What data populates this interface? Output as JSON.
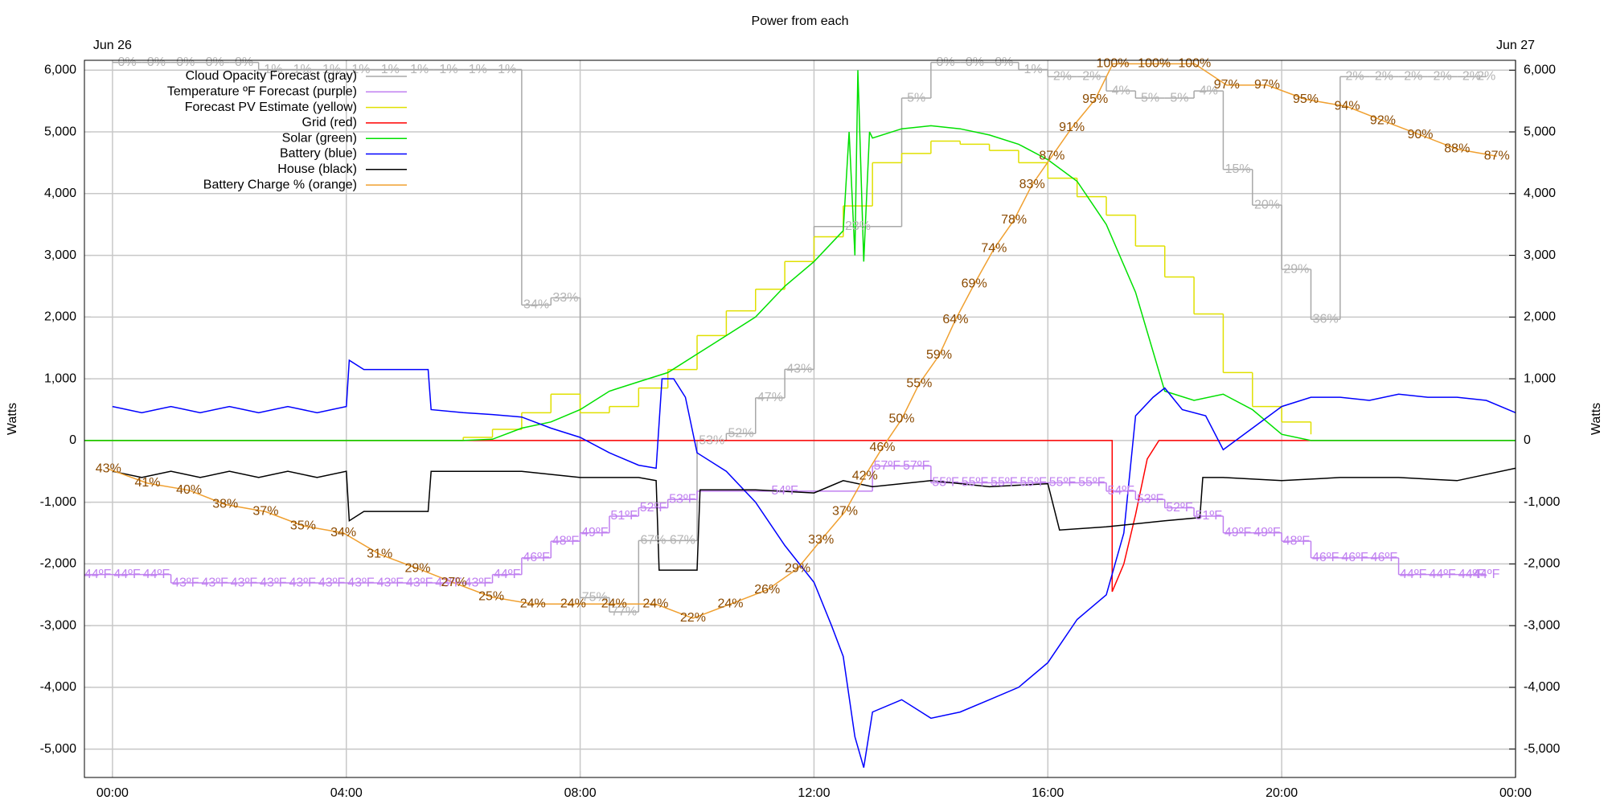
{
  "chart_data": {
    "type": "line",
    "title": "Power from each",
    "ylabel": "Watts",
    "y2label": "Watts",
    "date_labels": [
      {
        "value": 0,
        "label": "Jun 26"
      },
      {
        "value": 24,
        "label": "Jun 27"
      }
    ],
    "xlim": [
      -0.48,
      24
    ],
    "xticks": [
      {
        "value": 0,
        "label": "00:00"
      },
      {
        "value": 4,
        "label": "04:00"
      },
      {
        "value": 8,
        "label": "08:00"
      },
      {
        "value": 12,
        "label": "12:00"
      },
      {
        "value": 16,
        "label": "16:00"
      },
      {
        "value": 20,
        "label": "20:00"
      },
      {
        "value": 24,
        "label": "00:00"
      }
    ],
    "ylim": [
      -5460,
      6160
    ],
    "yticks": [
      {
        "value": 6000,
        "label": "6,000"
      },
      {
        "value": 5000,
        "label": "5,000"
      },
      {
        "value": 4000,
        "label": "4,000"
      },
      {
        "value": 3000,
        "label": "3,000"
      },
      {
        "value": 2000,
        "label": "2,000"
      },
      {
        "value": 1000,
        "label": "1,000"
      },
      0,
      {
        "value": -1000,
        "label": "-1,000"
      },
      {
        "value": -2000,
        "label": "-2,000"
      },
      {
        "value": -3000,
        "label": "-3,000"
      },
      {
        "value": -4000,
        "label": "-4,000"
      },
      {
        "value": -5000,
        "label": "-5,000"
      }
    ],
    "y2lim": [
      -5460,
      6160
    ],
    "y2ticks": [
      {
        "value": 6000,
        "label": "6,000"
      },
      {
        "value": 5000,
        "label": "5,000"
      },
      {
        "value": 4000,
        "label": "4,000"
      },
      {
        "value": 3000,
        "label": "3,000"
      },
      {
        "value": 2000,
        "label": "2,000"
      },
      {
        "value": 1000,
        "label": "1,000"
      },
      0,
      {
        "value": -1000,
        "label": "-1,000"
      },
      {
        "value": -2000,
        "label": "-2,000"
      },
      {
        "value": -3000,
        "label": "-3,000"
      },
      {
        "value": -4000,
        "label": "-4,000"
      },
      {
        "value": -5000,
        "label": "-5,000"
      }
    ],
    "y3lim": [
      -0.4,
      100.5
    ],
    "y4lim": [
      19.7,
      105.6
    ],
    "y5lim": [
      100.2,
      -0.3
    ],
    "grid": true,
    "legend": "upper left",
    "series": [
      {
        "name": "Cloud Opacity Forecast (gray)",
        "color": "#a8a8a8",
        "label_color": "#b4b4b4",
        "axis": "y5",
        "step": true,
        "x": [
          0,
          0.5,
          1,
          1.5,
          2,
          2.5,
          3,
          3.5,
          4,
          4.5,
          5,
          5.5,
          6,
          6.5,
          7,
          7.5,
          8,
          8.5,
          9,
          9.5,
          10,
          10.5,
          11,
          11.5,
          12,
          13.5,
          14,
          14.5,
          15,
          15.5,
          16,
          16.5,
          17,
          17.5,
          18,
          18.5,
          19,
          19.5,
          20,
          20.5,
          21,
          21.5,
          22,
          22.5,
          23,
          23.5
        ],
        "values": [
          0,
          0,
          0,
          0,
          0,
          1,
          1,
          1,
          1,
          1,
          1,
          1,
          1,
          1,
          34,
          33,
          75,
          77,
          67,
          67,
          53,
          52,
          47,
          43,
          23,
          5,
          0,
          0,
          0,
          1,
          2,
          2,
          4,
          5,
          5,
          4,
          15,
          20,
          29,
          36,
          2,
          2,
          2,
          2,
          2,
          2
        ],
        "value_labels": [
          "0%",
          "0%",
          "0%",
          "0%",
          "0%",
          "1%",
          "1%",
          "1%",
          "1%",
          "1%",
          "1%",
          "1%",
          "1%",
          "1%",
          "34%",
          "33%",
          "75%",
          "77%",
          "67%",
          "67%",
          "53%",
          "52%",
          "47%",
          "43%",
          "23%",
          "5%",
          "0%",
          "0%",
          "0%",
          "1%",
          "2%",
          "2%",
          "4%",
          "5%",
          "5%",
          "4%",
          "15%",
          "20%",
          "29%",
          "36%",
          "2%",
          "2%",
          "2%",
          "2%",
          "2%",
          "2%"
        ]
      },
      {
        "name": "Temperature ºF Forecast (purple)",
        "color": "#c080f0",
        "label_color": "#c080f0",
        "axis": "y4",
        "step": true,
        "x": [
          -0.5,
          0,
          0.5,
          1,
          1.5,
          2,
          2.5,
          3,
          3.5,
          4,
          4.5,
          5,
          5.5,
          6,
          6.5,
          7,
          7.5,
          8,
          8.5,
          9,
          9.5,
          10,
          13,
          13.5,
          14,
          14.5,
          15,
          15.5,
          16,
          16.5,
          17,
          17.5,
          18,
          18.5,
          19,
          19.5,
          20,
          20.5,
          21,
          21.5,
          22,
          22.5,
          23,
          23.5
        ],
        "values": [
          44,
          44,
          44,
          43,
          43,
          43,
          43,
          43,
          43,
          43,
          43,
          43,
          43,
          43,
          44,
          46,
          48,
          49,
          51,
          52,
          53,
          54,
          57,
          57,
          55,
          55,
          55,
          55,
          55,
          55,
          54,
          53,
          52,
          51,
          49,
          49,
          48,
          46,
          46,
          46,
          44,
          44,
          44,
          44
        ],
        "value_labels": [
          "44ºF",
          "44ºF",
          "44ºF",
          "43ºF",
          "43ºF",
          "43ºF",
          "43ºF",
          "43ºF",
          "43ºF",
          "43ºF",
          "43ºF",
          "43ºF",
          "43ºF",
          "43ºF",
          "44ºF",
          "46ºF",
          "48ºF",
          "49ºF",
          "51ºF",
          "52ºF",
          "53ºF",
          "54ºF",
          "57ºF",
          "57ºF",
          "55ºF",
          "55ºF",
          "55ºF",
          "55ºF",
          "55ºF",
          "55ºF",
          "54ºF",
          "53ºF",
          "52ºF",
          "51ºF",
          "49ºF",
          "49ºF",
          "48ºF",
          "46ºF",
          "46ºF",
          "46ºF",
          "44ºF",
          "44ºF",
          "44ºF",
          "44ºF"
        ]
      },
      {
        "name": "Forecast PV Estimate (yellow)",
        "color": "#e0e000",
        "step": true,
        "x": [
          -0.48,
          6,
          6.5,
          7,
          7.5,
          8,
          8.5,
          9,
          9.5,
          10,
          10.5,
          11,
          11.5,
          12,
          12.5,
          13,
          13.5,
          14,
          14.5,
          15,
          15.5,
          16,
          16.5,
          17,
          17.5,
          18,
          18.5,
          19,
          19.5,
          20,
          20.5
        ],
        "values": [
          0,
          50,
          180,
          450,
          750,
          450,
          550,
          850,
          1150,
          1700,
          2100,
          2450,
          2900,
          3300,
          3800,
          4500,
          4650,
          4850,
          4800,
          4700,
          4500,
          4250,
          3950,
          3650,
          3150,
          2650,
          2050,
          1100,
          550,
          300,
          100
        ]
      },
      {
        "name": "Grid (red)",
        "color": "#ff0000",
        "x": [
          -0.48,
          17.1,
          17.1,
          17.3,
          17.5,
          17.7,
          17.9,
          24
        ],
        "values": [
          0,
          0,
          -2450,
          -2000,
          -1200,
          -300,
          0,
          0
        ]
      },
      {
        "name": "Solar (green)",
        "color": "#00e000",
        "x": [
          -0.48,
          6,
          6.5,
          7,
          7.5,
          8,
          8.5,
          9,
          9.5,
          10,
          10.5,
          11,
          11.5,
          12,
          12.5,
          12.6,
          12.7,
          12.75,
          12.85,
          12.95,
          13,
          13.5,
          14,
          14.5,
          15,
          15.5,
          16,
          16.5,
          17,
          17.5,
          18,
          18.5,
          19,
          19.5,
          20,
          20.5,
          24
        ],
        "values": [
          0,
          0,
          20,
          200,
          300,
          500,
          800,
          950,
          1100,
          1400,
          1700,
          2000,
          2500,
          2900,
          3400,
          5000,
          3000,
          6000,
          2900,
          5000,
          4900,
          5050,
          5100,
          5050,
          4950,
          4800,
          4550,
          4200,
          3500,
          2400,
          800,
          650,
          750,
          500,
          100,
          0,
          0
        ]
      },
      {
        "name": "Battery (blue)",
        "color": "#0000ff",
        "x": [
          0,
          0.5,
          1,
          1.5,
          2,
          2.5,
          3,
          3.5,
          4,
          4.05,
          4.3,
          5.4,
          5.45,
          6,
          6.5,
          7,
          7.5,
          8,
          8.5,
          9,
          9.3,
          9.4,
          9.6,
          9.8,
          10,
          10.5,
          11,
          11.5,
          12,
          12.3,
          12.5,
          12.7,
          12.85,
          13,
          13.5,
          14,
          14.5,
          15,
          15.5,
          16,
          16.5,
          17,
          17.3,
          17.5,
          17.8,
          18,
          18.3,
          18.7,
          19,
          19.5,
          20,
          20.5,
          21,
          21.5,
          22,
          22.5,
          23,
          23.5,
          24
        ],
        "values": [
          550,
          450,
          550,
          450,
          550,
          450,
          550,
          450,
          550,
          1300,
          1150,
          1150,
          500,
          450,
          420,
          380,
          200,
          50,
          -200,
          -400,
          -450,
          1000,
          1000,
          700,
          -200,
          -500,
          -1000,
          -1700,
          -2300,
          -3000,
          -3500,
          -4800,
          -5300,
          -4400,
          -4200,
          -4500,
          -4400,
          -4200,
          -4000,
          -3600,
          -2900,
          -2500,
          -1500,
          400,
          700,
          850,
          500,
          400,
          -150,
          200,
          550,
          700,
          700,
          650,
          750,
          700,
          700,
          650,
          450
        ]
      },
      {
        "name": "House (black)",
        "color": "#000000",
        "x": [
          0,
          0.5,
          1,
          1.5,
          2,
          2.5,
          3,
          3.5,
          4,
          4.05,
          4.3,
          5.4,
          5.45,
          6,
          7,
          8,
          9,
          9.3,
          9.35,
          10,
          10.05,
          11,
          12,
          12.5,
          13,
          14,
          15,
          16,
          16.2,
          17,
          18,
          18.6,
          18.65,
          19,
          20,
          21,
          22,
          23,
          24
        ],
        "values": [
          -500,
          -600,
          -500,
          -600,
          -500,
          -600,
          -500,
          -600,
          -500,
          -1300,
          -1150,
          -1150,
          -500,
          -500,
          -500,
          -600,
          -600,
          -650,
          -2100,
          -2100,
          -800,
          -800,
          -850,
          -650,
          -750,
          -650,
          -750,
          -700,
          -1450,
          -1400,
          -1300,
          -1250,
          -600,
          -600,
          -650,
          -600,
          -600,
          -650,
          -450
        ]
      },
      {
        "name": "Battery Charge % (orange)",
        "color": "#f0a030",
        "label_color": "#8b4a00",
        "axis": "y3",
        "x": [
          -0.07,
          0.6,
          1.31,
          1.93,
          2.62,
          3.26,
          3.95,
          4.57,
          5.22,
          5.84,
          6.48,
          7.19,
          7.88,
          8.58,
          9.29,
          9.93,
          10.57,
          11.2,
          11.72,
          12.12,
          12.53,
          12.87,
          13.17,
          13.5,
          13.8,
          14.14,
          14.42,
          14.74,
          15.08,
          15.42,
          15.73,
          16.07,
          16.41,
          16.81,
          17.11,
          17.82,
          18.51,
          19.06,
          19.75,
          20.41,
          21.12,
          21.73,
          22.37,
          23.0,
          23.68
        ],
        "values": [
          43,
          41,
          40,
          38,
          37,
          35,
          34,
          31,
          29,
          27,
          25,
          24,
          24,
          24,
          24,
          22,
          24,
          26,
          29,
          33,
          37,
          42,
          46,
          50,
          55,
          59,
          64,
          69,
          74,
          78,
          83,
          87,
          91,
          95,
          100,
          100,
          100,
          97,
          97,
          95,
          94,
          92,
          90,
          88,
          87
        ],
        "value_labels": [
          "43%",
          "41%",
          "40%",
          "38%",
          "37%",
          "35%",
          "34%",
          "31%",
          "29%",
          "27%",
          "25%",
          "24%",
          "24%",
          "24%",
          "24%",
          "22%",
          "24%",
          "26%",
          "29%",
          "33%",
          "37%",
          "42%",
          "46%",
          "50%",
          "55%",
          "59%",
          "64%",
          "69%",
          "74%",
          "78%",
          "83%",
          "87%",
          "91%",
          "95%",
          "100%",
          "100%",
          "100%",
          "97%",
          "97%",
          "95%",
          "94%",
          "92%",
          "90%",
          "88%",
          "87%"
        ]
      }
    ]
  }
}
